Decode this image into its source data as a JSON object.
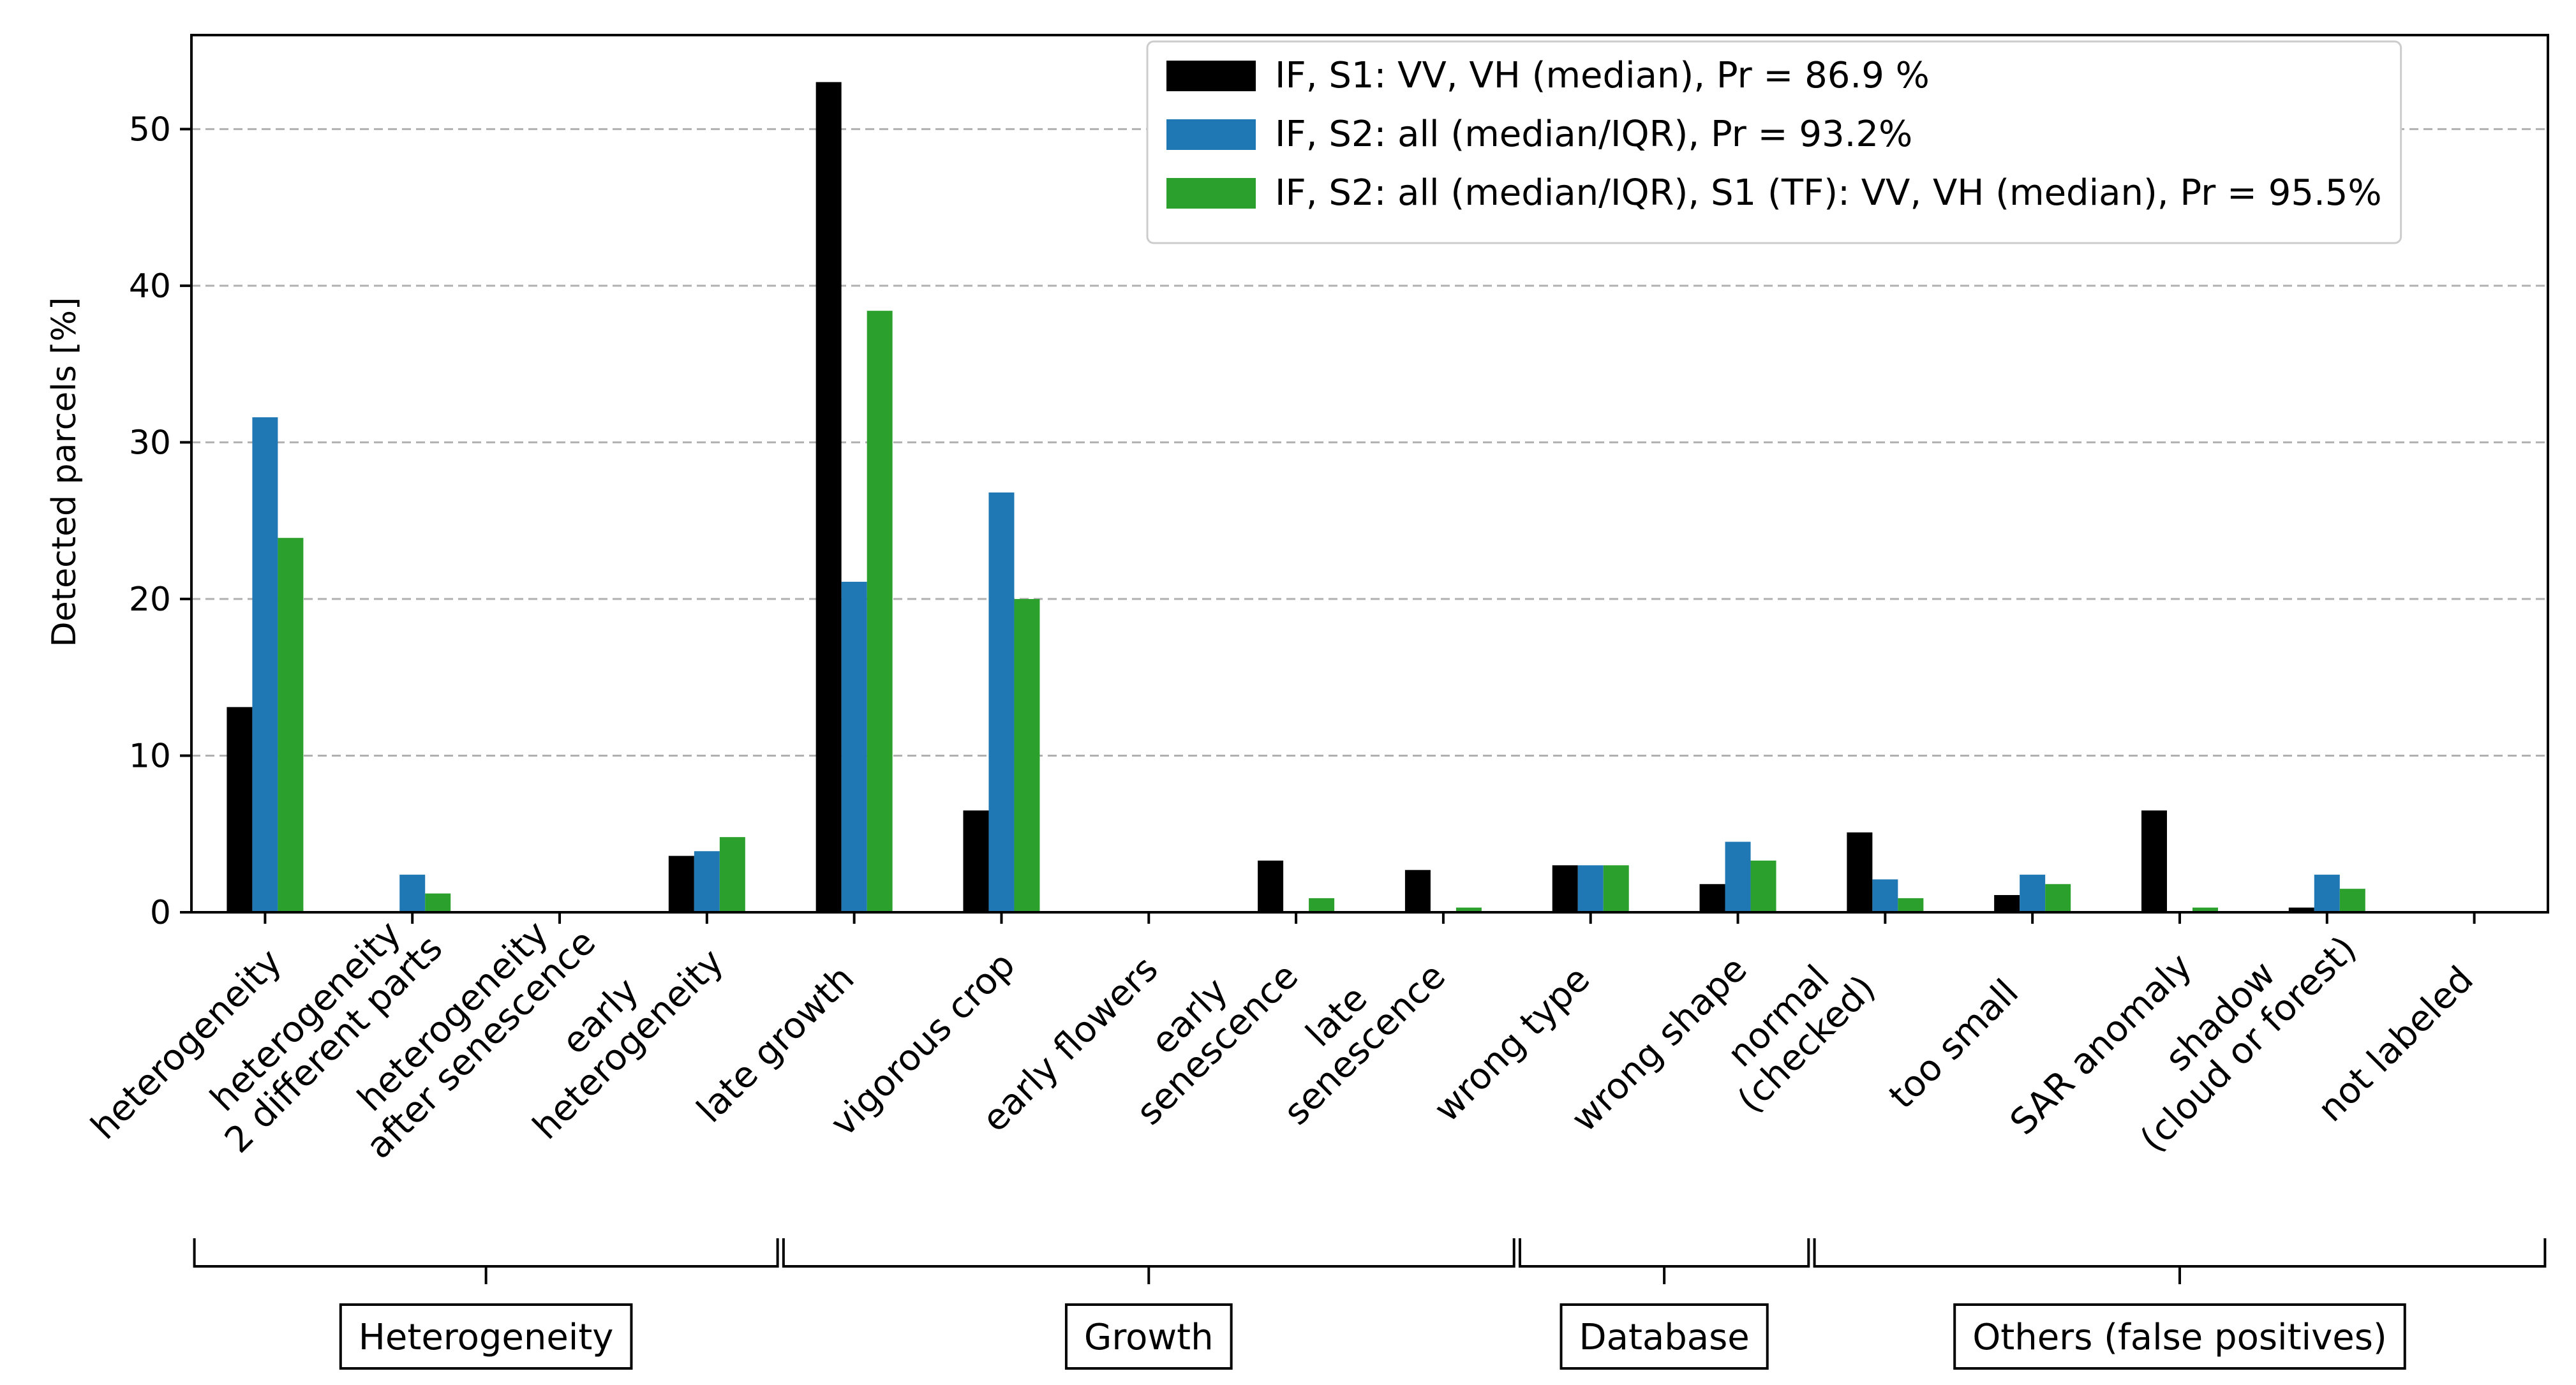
{
  "chart_data": {
    "type": "bar",
    "ylabel": "Detected parcels [%]",
    "ylim": [
      0,
      56
    ],
    "yticks": [
      0,
      10,
      20,
      30,
      40,
      50
    ],
    "grid": "horizontal dashed",
    "legend_position": "top-right",
    "categories": [
      [
        "heterogeneity"
      ],
      [
        "heterogeneity",
        "2 different parts"
      ],
      [
        "heterogeneity",
        "after senescence"
      ],
      [
        "early",
        "heterogeneity"
      ],
      [
        "late growth"
      ],
      [
        "vigorous crop"
      ],
      [
        "early flowers"
      ],
      [
        "early",
        "senescence"
      ],
      [
        "late",
        "senescence"
      ],
      [
        "wrong type"
      ],
      [
        "wrong shape"
      ],
      [
        "normal",
        "(checked)"
      ],
      [
        "too small"
      ],
      [
        "SAR anomaly"
      ],
      [
        "shadow",
        "(cloud or forest)"
      ],
      [
        "not labeled"
      ]
    ],
    "series": [
      {
        "name": "IF, S1: VV, VH (median), Pr = 86.9 %",
        "color": "#000000",
        "values": [
          13.1,
          0,
          0,
          3.6,
          53.0,
          6.5,
          0,
          3.3,
          2.7,
          3.0,
          1.8,
          5.1,
          1.1,
          6.5,
          0.3,
          0
        ]
      },
      {
        "name": "IF, S2: all (median/IQR), Pr = 93.2%",
        "color": "#1f77b4",
        "values": [
          31.6,
          2.4,
          0,
          3.9,
          21.1,
          26.8,
          0,
          0,
          0,
          3.0,
          4.5,
          2.1,
          2.4,
          0,
          2.4,
          0
        ]
      },
      {
        "name": "IF, S2: all (median/IQR), S1 (TF): VV, VH (median), Pr = 95.5%",
        "color": "#2ca02c",
        "values": [
          23.9,
          1.2,
          0,
          4.8,
          38.4,
          20.0,
          0,
          0.9,
          0.3,
          3.0,
          3.3,
          0.9,
          1.8,
          0.3,
          1.5,
          0
        ]
      }
    ],
    "groups": [
      {
        "label": "Heterogeneity",
        "start": 0,
        "end": 3
      },
      {
        "label": "Growth",
        "start": 4,
        "end": 8
      },
      {
        "label": "Database",
        "start": 9,
        "end": 10
      },
      {
        "label": "Others (false positives)",
        "start": 11,
        "end": 15
      }
    ]
  }
}
